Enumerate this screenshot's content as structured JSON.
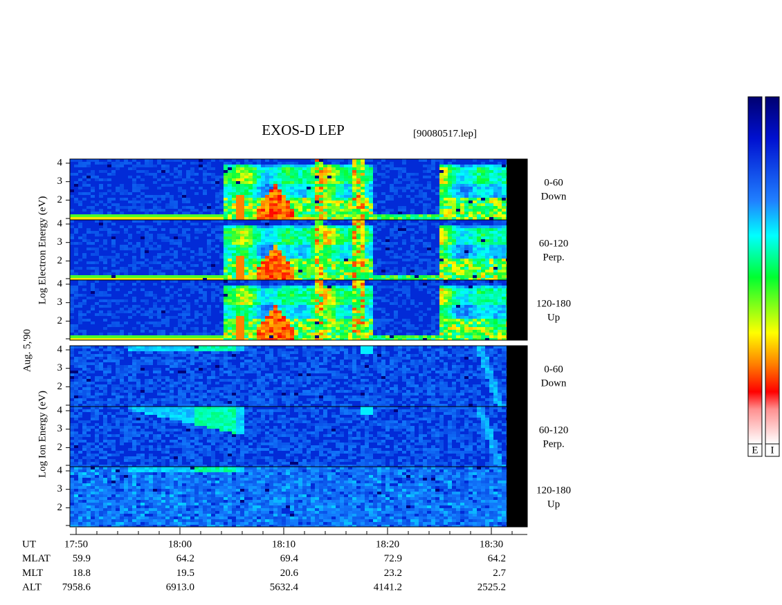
{
  "header": {
    "title": "EXOS-D LEP",
    "file": "[90080517.lep]"
  },
  "date": "Aug. 5,'90",
  "electron_label": "Log Electron Energy (eV)",
  "ion_label": "Log Ion Energy (eV)",
  "energy_ticks": [
    "2",
    "3",
    "4"
  ],
  "panels": [
    {
      "pitch": "0-60",
      "direction": "Down"
    },
    {
      "pitch": "60-120",
      "direction": "Perp."
    },
    {
      "pitch": "120-180",
      "direction": "Up"
    },
    {
      "pitch": "0-60",
      "direction": "Down"
    },
    {
      "pitch": "60-120",
      "direction": "Perp."
    },
    {
      "pitch": "120-180",
      "direction": "Up"
    }
  ],
  "time_axis": {
    "rows": [
      {
        "name": "UT",
        "values": [
          "17:50",
          "18:00",
          "18:10",
          "18:20",
          "18:30"
        ]
      },
      {
        "name": "MLAT",
        "values": [
          "59.9",
          "64.2",
          "69.4",
          "72.9",
          "64.2"
        ]
      },
      {
        "name": "MLT",
        "values": [
          "18.8",
          "19.5",
          "20.6",
          "23.2",
          "2.7"
        ]
      },
      {
        "name": "ALT",
        "values": [
          "7958.6",
          "6913.0",
          "5632.4",
          "4141.2",
          "2525.2"
        ]
      }
    ]
  },
  "colorbars": [
    "E",
    "I"
  ]
}
